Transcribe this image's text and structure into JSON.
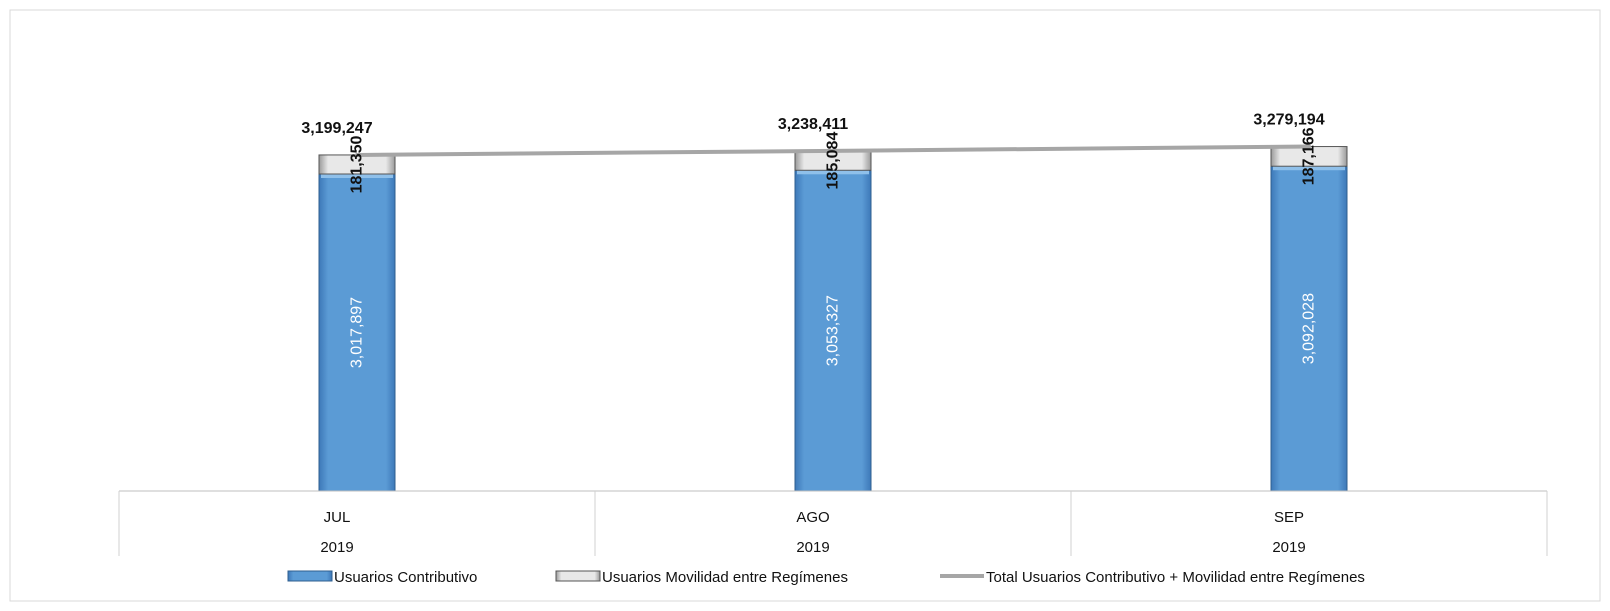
{
  "chart_data": {
    "type": "bar",
    "stacked": true,
    "categories": [
      "JUL",
      "AGO",
      "SEP"
    ],
    "year_labels": [
      "2019",
      "2019",
      "2019"
    ],
    "series": [
      {
        "name": "Usuarios Contributivo",
        "values": [
          3017897,
          3053327,
          3092028
        ],
        "labels": [
          "3,017,897",
          "3,053,327",
          "3,092,028"
        ],
        "color": "#5b9bd5"
      },
      {
        "name": "Usuarios Movilidad entre Regímenes",
        "values": [
          181350,
          185084,
          187166
        ],
        "labels": [
          "181,350",
          "185,084",
          "187,166"
        ],
        "color": "#e6e6e6"
      }
    ],
    "total_line": {
      "name": "Total Usuarios Contributivo + Movilidad entre Regímenes",
      "values": [
        3199247,
        3238411,
        3279194
      ],
      "labels": [
        "3,199,247",
        "3,238,411",
        "3,279,194"
      ],
      "color": "#a6a6a6"
    },
    "legend_position": "bottom",
    "grid": false
  }
}
